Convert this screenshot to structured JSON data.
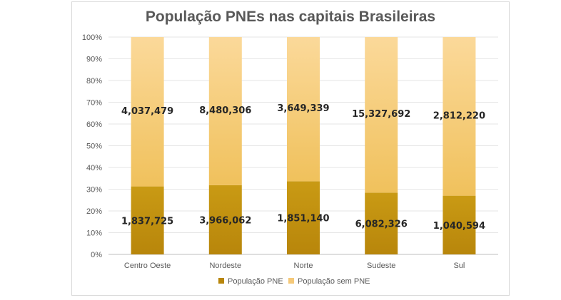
{
  "chart_data": {
    "type": "bar",
    "stacked": "percent",
    "title": "População PNEs nas capitais Brasileiras",
    "categories": [
      "Centro Oeste",
      "Nordeste",
      "Norte",
      "Sudeste",
      "Sul"
    ],
    "series": [
      {
        "name": "População PNE",
        "values": [
          1837725,
          3966062,
          1851140,
          6082326,
          1040594
        ],
        "labels": [
          "1,837,725",
          "3,966,062",
          "1,851,140",
          "6,082,326",
          "1,040,594"
        ],
        "color": "#b8860b"
      },
      {
        "name": "População sem PNE",
        "values": [
          4037479,
          8480306,
          3649339,
          15327692,
          2812220
        ],
        "labels": [
          "4,037,479",
          "8,480,306",
          "3,649,339",
          "15,327,692",
          "2,812,220"
        ],
        "color": "#f5c97a"
      }
    ],
    "y_ticks": [
      "0%",
      "10%",
      "20%",
      "30%",
      "40%",
      "50%",
      "60%",
      "70%",
      "80%",
      "90%",
      "100%"
    ],
    "ylim": [
      0,
      100
    ],
    "grid": true,
    "legend_position": "bottom",
    "colors": {
      "grid": "#e6e6e6",
      "axis": "#bfbfbf",
      "pne_top": "#c99a14",
      "pne_bottom": "#b8860b",
      "sem_top": "#fbd99a",
      "sem_bottom": "#f0c15c"
    }
  }
}
